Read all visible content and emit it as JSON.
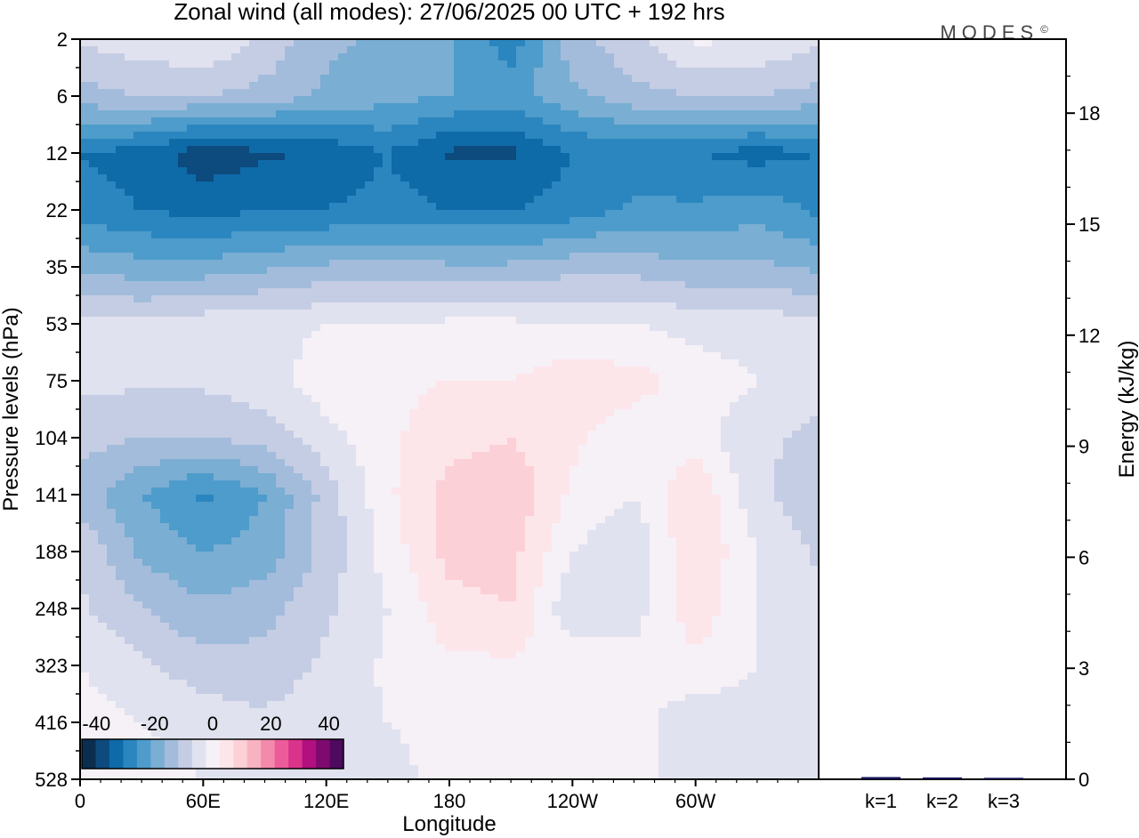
{
  "chart_data": [
    {
      "type": "heatmap",
      "title": "Zonal wind (all modes):  27/06/2025  00 UTC  + 192 hrs",
      "xlabel": "Longitude",
      "ylabel": "Pressure levels (hPa)",
      "x_ticks": [
        "0",
        "60E",
        "120E",
        "180",
        "120W",
        "60W"
      ],
      "y_ticks": [
        "2",
        "6",
        "12",
        "22",
        "35",
        "53",
        "75",
        "104",
        "141",
        "188",
        "248",
        "323",
        "416",
        "528"
      ],
      "colorbar": {
        "tick_labels": [
          "-40",
          "-20",
          "0",
          "20",
          "40"
        ],
        "bins": [
          -45,
          -40,
          -35,
          -30,
          -25,
          -20,
          -15,
          -10,
          -5,
          0,
          5,
          10,
          15,
          20,
          25,
          30,
          35,
          40,
          45
        ],
        "colors": [
          "#0b2e4f",
          "#0d4a7e",
          "#0f6aa8",
          "#2b86bf",
          "#4e9ccb",
          "#7aaed3",
          "#a3bcdb",
          "#c5cde4",
          "#e1e2ef",
          "#f6f0f7",
          "#fde6ea",
          "#fbd0d6",
          "#f8b2c0",
          "#f48aab",
          "#ec5c9a",
          "#d9338c",
          "#b1107e",
          "#7f0a6f",
          "#4e0a5e"
        ]
      },
      "levels_hpa": [
        2,
        6,
        12,
        22,
        35,
        53,
        75,
        104,
        141,
        188,
        248,
        323,
        416,
        528
      ],
      "longitudes": [
        0,
        30,
        60,
        90,
        120,
        150,
        180,
        210,
        240,
        270,
        300,
        330,
        360
      ],
      "values": [
        [
          -4,
          -2,
          0,
          -6,
          -14,
          -16,
          -20,
          -28,
          -12,
          -6,
          1,
          0,
          -4
        ],
        [
          -12,
          -10,
          -10,
          -12,
          -16,
          -18,
          -20,
          -22,
          -16,
          -12,
          -10,
          -10,
          -12
        ],
        [
          -30,
          -32,
          -38,
          -36,
          -34,
          -30,
          -36,
          -36,
          -30,
          -28,
          -30,
          -32,
          -30
        ],
        [
          -28,
          -30,
          -32,
          -30,
          -30,
          -28,
          -30,
          -30,
          -28,
          -24,
          -24,
          -22,
          -26
        ],
        [
          -16,
          -18,
          -18,
          -16,
          -14,
          -14,
          -14,
          -14,
          -12,
          -12,
          -14,
          -14,
          -16
        ],
        [
          -4,
          -4,
          -2,
          -2,
          0,
          0,
          1,
          1,
          0,
          0,
          -2,
          -2,
          -4
        ],
        [
          -4,
          -4,
          -4,
          -2,
          3,
          4,
          5,
          5,
          8,
          7,
          3,
          0,
          -4
        ],
        [
          -8,
          -10,
          -10,
          -8,
          -2,
          4,
          8,
          10,
          6,
          2,
          2,
          -4,
          -6
        ],
        [
          -12,
          -20,
          -26,
          -20,
          -8,
          4,
          12,
          14,
          4,
          0,
          10,
          -4,
          -8
        ],
        [
          -6,
          -16,
          -20,
          -18,
          -8,
          2,
          12,
          12,
          0,
          -4,
          10,
          0,
          -6
        ],
        [
          -4,
          -10,
          -14,
          -12,
          -6,
          0,
          8,
          10,
          -4,
          -2,
          8,
          0,
          -4
        ],
        [
          0,
          -4,
          -8,
          -8,
          -4,
          1,
          4,
          4,
          4,
          2,
          4,
          0,
          -2
        ],
        [
          2,
          0,
          -2,
          -4,
          -2,
          0,
          2,
          0,
          4,
          2,
          -4,
          -2,
          -2
        ],
        [
          2,
          2,
          0,
          -2,
          -2,
          -2,
          2,
          0,
          2,
          2,
          -4,
          -2,
          -2
        ]
      ]
    },
    {
      "type": "bar",
      "ylabel": "Energy (kJ/kg)",
      "categories": [
        "k=1",
        "k=2",
        "k=3"
      ],
      "values": [
        0.06,
        0.05,
        0.04
      ],
      "ylim": [
        0,
        20
      ],
      "y_ticks": [
        "0",
        "3",
        "6",
        "9",
        "12",
        "15",
        "18"
      ]
    }
  ],
  "brand": {
    "name": "MODES",
    "mark": "©"
  }
}
